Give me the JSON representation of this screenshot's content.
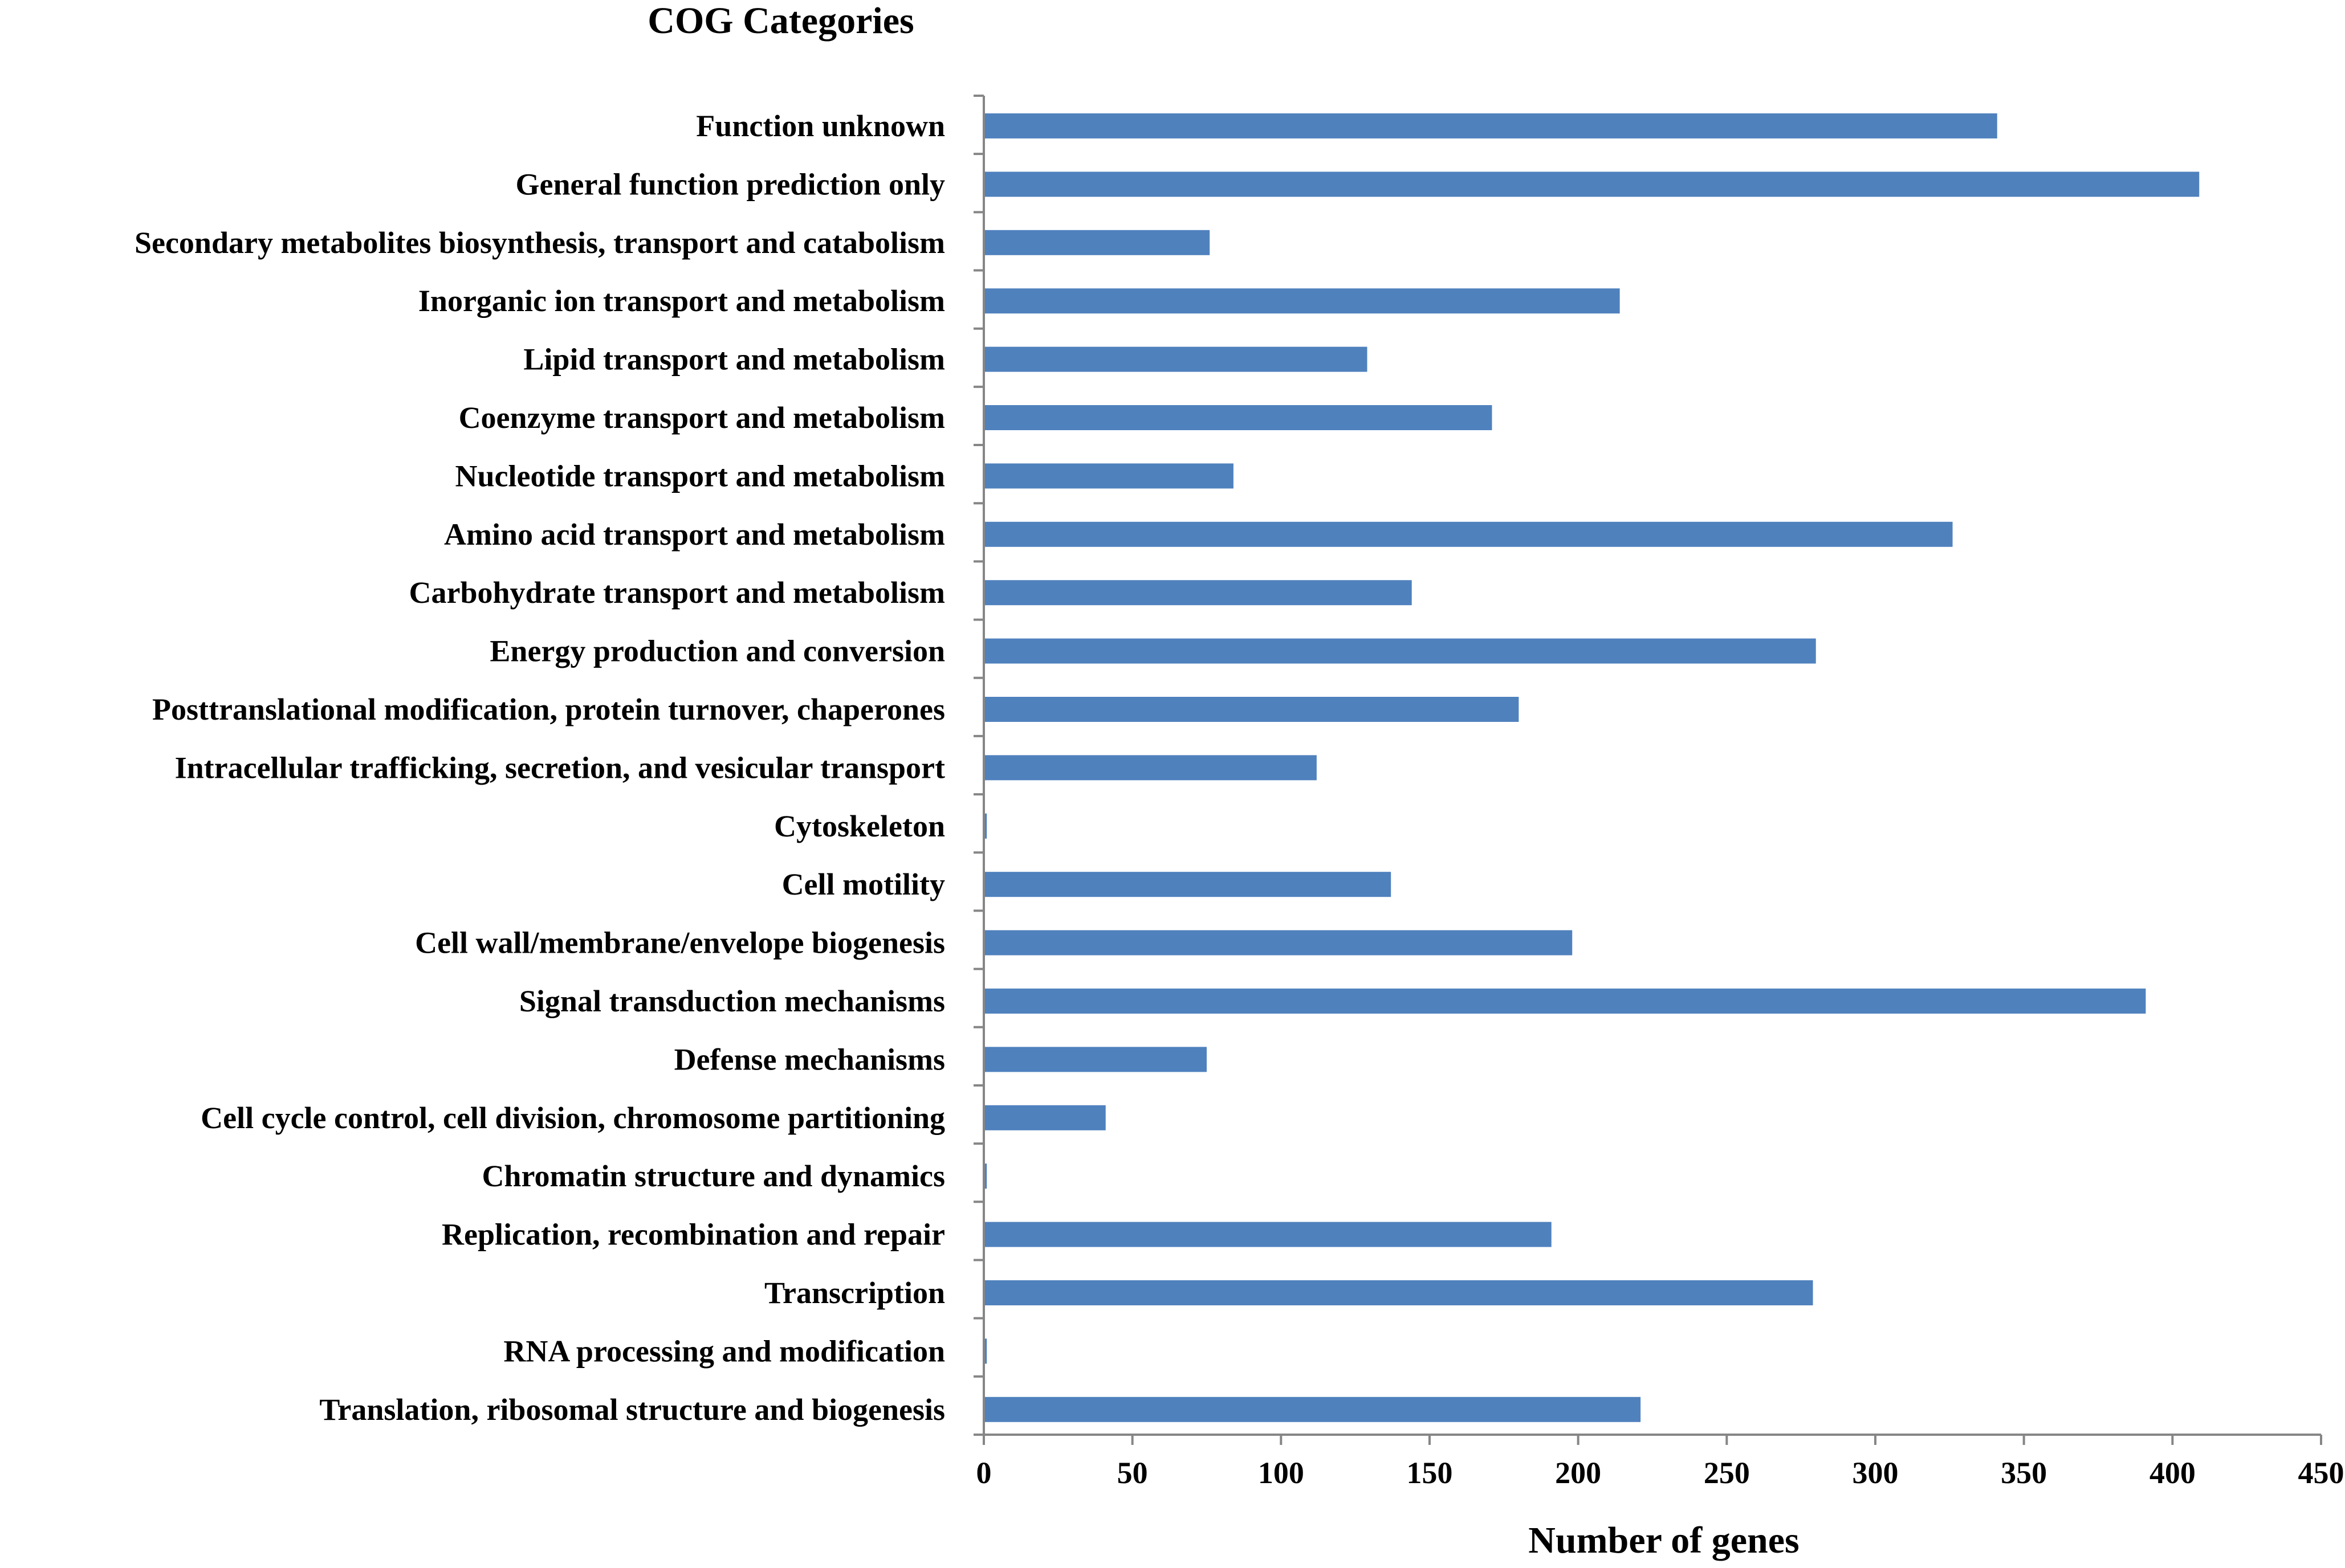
{
  "chart_data": {
    "type": "bar",
    "orientation": "horizontal",
    "title": "COG Categories",
    "xlabel": "Number of genes",
    "ylabel": "",
    "xlim": [
      0,
      450
    ],
    "xticks": [
      0,
      50,
      100,
      150,
      200,
      250,
      300,
      350,
      400,
      450
    ],
    "grid": false,
    "legend": "none",
    "bar_color": "#4F81BD",
    "categories": [
      "Function unknown",
      "General function prediction only",
      "Secondary metabolites biosynthesis, transport and catabolism",
      "Inorganic ion transport and metabolism",
      "Lipid transport and metabolism",
      "Coenzyme transport and metabolism",
      "Nucleotide transport and metabolism",
      "Amino acid transport and metabolism",
      "Carbohydrate transport and metabolism",
      "Energy production and conversion",
      "Posttranslational modification, protein turnover, chaperones",
      "Intracellular trafficking, secretion, and vesicular transport",
      "Cytoskeleton",
      "Cell motility",
      "Cell wall/membrane/envelope biogenesis",
      "Signal transduction mechanisms",
      "Defense mechanisms",
      "Cell cycle control, cell division, chromosome partitioning",
      "Chromatin structure and dynamics",
      "Replication, recombination and repair",
      "Transcription",
      "RNA processing and modification",
      "Translation, ribosomal structure and biogenesis"
    ],
    "values": [
      341,
      409,
      76,
      214,
      129,
      171,
      84,
      326,
      144,
      280,
      180,
      112,
      1,
      137,
      198,
      391,
      75,
      41,
      1,
      191,
      279,
      1,
      221
    ]
  }
}
